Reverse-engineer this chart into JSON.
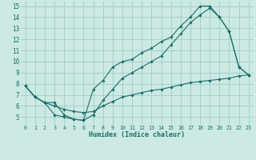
{
  "xlabel": "Humidex (Indice chaleur)",
  "xlim": [
    -0.5,
    23.5
  ],
  "ylim": [
    4.3,
    15.4
  ],
  "yticks": [
    5,
    6,
    7,
    8,
    9,
    10,
    11,
    12,
    13,
    14,
    15
  ],
  "xticks": [
    0,
    1,
    2,
    3,
    4,
    5,
    6,
    7,
    8,
    9,
    10,
    11,
    12,
    13,
    14,
    15,
    16,
    17,
    18,
    19,
    20,
    21,
    22,
    23
  ],
  "background_color": "#cce9e4",
  "grid_color": "#a0cdc8",
  "line_color": "#1b7068",
  "line1_x": [
    0,
    1,
    2,
    3,
    4,
    5,
    6,
    7,
    8,
    9,
    10,
    11,
    12,
    13,
    14,
    15,
    16,
    17,
    18,
    19,
    20,
    21,
    22,
    23
  ],
  "line1_y": [
    7.8,
    6.8,
    6.3,
    6.3,
    5.2,
    4.8,
    4.7,
    7.5,
    8.3,
    9.5,
    10.0,
    10.2,
    10.8,
    11.2,
    11.8,
    12.2,
    13.2,
    14.0,
    15.0,
    15.0,
    14.0,
    12.7,
    9.5,
    8.8
  ],
  "line2_x": [
    0,
    1,
    2,
    3,
    4,
    5,
    6,
    7,
    8,
    9,
    10,
    11,
    12,
    13,
    14,
    15,
    16,
    17,
    18,
    19,
    20,
    21,
    22,
    23
  ],
  "line2_y": [
    7.8,
    6.8,
    6.3,
    5.2,
    5.0,
    4.8,
    4.7,
    5.2,
    6.5,
    7.5,
    8.5,
    9.0,
    9.5,
    10.0,
    10.5,
    11.5,
    12.5,
    13.5,
    14.2,
    14.8,
    14.0,
    12.7,
    9.5,
    8.8
  ],
  "line3_x": [
    0,
    1,
    2,
    3,
    4,
    5,
    6,
    7,
    8,
    9,
    10,
    11,
    12,
    13,
    14,
    15,
    16,
    17,
    18,
    19,
    20,
    21,
    22,
    23
  ],
  "line3_y": [
    7.8,
    6.8,
    6.3,
    6.0,
    5.7,
    5.5,
    5.4,
    5.5,
    6.0,
    6.4,
    6.8,
    7.0,
    7.2,
    7.4,
    7.5,
    7.7,
    7.9,
    8.1,
    8.2,
    8.3,
    8.4,
    8.5,
    8.7,
    8.8
  ]
}
